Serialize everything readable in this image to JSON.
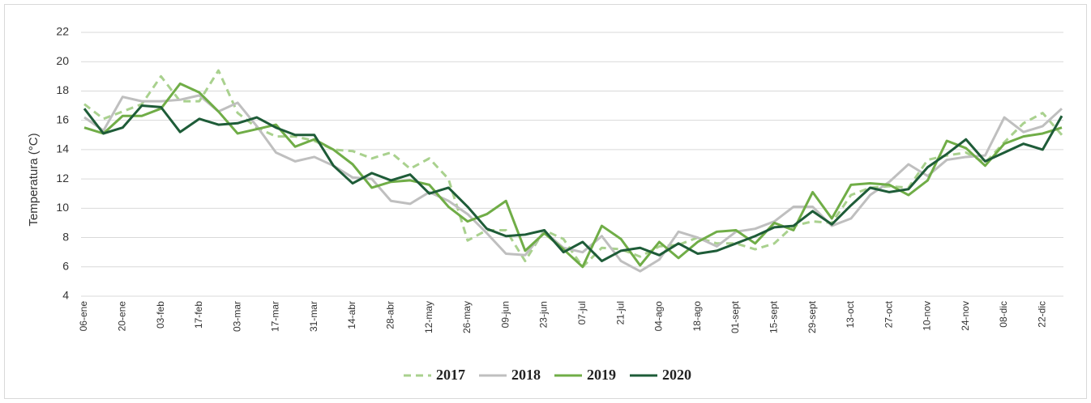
{
  "chart_data": {
    "type": "line",
    "y_label": "Temperatura (°C)",
    "categories": [
      "06-ene",
      null,
      "20-ene",
      null,
      "03-feb",
      null,
      "17-feb",
      null,
      "03-mar",
      null,
      "17-mar",
      null,
      "31-mar",
      null,
      "14-abr",
      null,
      "28-abr",
      null,
      "12-may",
      null,
      "26-may",
      null,
      "09-jun",
      null,
      "23-jun",
      null,
      "07-jul",
      null,
      "21-jul",
      null,
      "04-ago",
      null,
      "18-ago",
      null,
      "01-sept",
      null,
      "15-sept",
      null,
      "29-sept",
      null,
      "13-oct",
      null,
      "27-oct",
      null,
      "10-nov",
      null,
      "24-nov",
      null,
      "08-dic",
      null,
      "22-dic",
      null
    ],
    "series": [
      {
        "name": "2017",
        "color": "#a9d18e",
        "dashed": true,
        "values": [
          17.1,
          16.1,
          16.6,
          17.1,
          19.0,
          17.3,
          17.3,
          19.4,
          16.5,
          15.5,
          14.9,
          14.9,
          14.6,
          14.0,
          13.9,
          13.4,
          13.8,
          12.7,
          13.4,
          12.0,
          7.8,
          8.5,
          8.5,
          6.4,
          8.5,
          7.9,
          6.0,
          7.3,
          7.2,
          6.7,
          7.4,
          7.5,
          8.0,
          7.6,
          7.6,
          7.2,
          7.6,
          8.8,
          9.1,
          9.0,
          10.9,
          11.4,
          11.5,
          11.4,
          13.3,
          13.6,
          13.8,
          13.1,
          14.5,
          15.8,
          16.5,
          15.0
        ]
      },
      {
        "name": "2018",
        "color": "#bfbfbf",
        "dashed": false,
        "values": [
          16.2,
          15.3,
          17.6,
          17.3,
          17.3,
          17.4,
          17.7,
          16.6,
          17.2,
          15.6,
          13.8,
          13.2,
          13.5,
          12.9,
          12.1,
          12.0,
          10.5,
          10.3,
          11.1,
          10.5,
          9.6,
          8.3,
          6.9,
          6.8,
          8.4,
          7.3,
          7.0,
          8.1,
          6.4,
          5.7,
          6.5,
          8.4,
          8.0,
          7.4,
          8.4,
          8.6,
          9.1,
          10.1,
          10.1,
          8.8,
          9.3,
          10.9,
          11.8,
          13.0,
          12.2,
          13.3,
          13.5,
          13.6,
          16.2,
          15.2,
          15.6,
          16.8
        ]
      },
      {
        "name": "2019",
        "color": "#70ad47",
        "dashed": false,
        "values": [
          15.5,
          15.1,
          16.3,
          16.3,
          16.8,
          18.5,
          17.9,
          16.6,
          15.1,
          15.4,
          15.7,
          14.2,
          14.7,
          14.0,
          13.0,
          11.4,
          11.8,
          11.9,
          11.6,
          10.1,
          9.1,
          9.6,
          10.5,
          7.1,
          8.3,
          7.2,
          6.0,
          8.8,
          7.9,
          6.1,
          7.7,
          6.6,
          7.7,
          8.4,
          8.5,
          7.6,
          9.0,
          8.5,
          11.1,
          9.3,
          11.6,
          11.7,
          11.6,
          10.9,
          11.9,
          14.6,
          14.1,
          12.9,
          14.4,
          14.9,
          15.1,
          15.5
        ]
      },
      {
        "name": "2020",
        "color": "#1e5c38",
        "dashed": false,
        "values": [
          16.8,
          15.1,
          15.5,
          17.0,
          16.9,
          15.2,
          16.1,
          15.7,
          15.8,
          16.2,
          15.5,
          15.0,
          15.0,
          12.9,
          11.7,
          12.4,
          11.9,
          12.3,
          11.0,
          11.4,
          10.1,
          8.6,
          8.1,
          8.2,
          8.5,
          7.0,
          7.7,
          6.4,
          7.1,
          7.3,
          6.8,
          7.6,
          6.9,
          7.1,
          7.6,
          8.1,
          8.7,
          8.8,
          9.8,
          8.9,
          10.2,
          11.4,
          11.1,
          11.3,
          12.8,
          13.7,
          14.7,
          13.2,
          13.8,
          14.4,
          14.0,
          16.3
        ]
      }
    ],
    "ylim": [
      4,
      22
    ],
    "yticks": [
      4,
      6,
      8,
      10,
      12,
      14,
      16,
      18,
      20,
      22
    ],
    "grid": true,
    "legend": "bottom"
  }
}
